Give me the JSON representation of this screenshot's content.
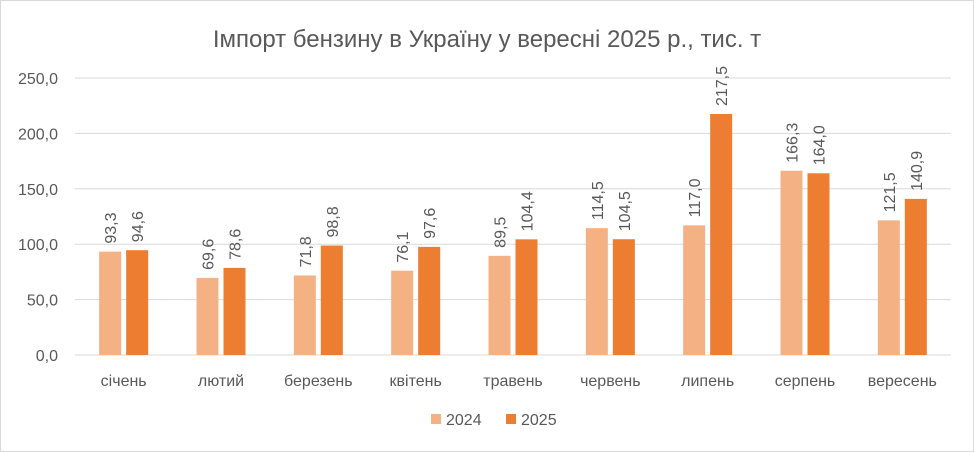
{
  "chart_data": {
    "type": "bar",
    "title": "Імпорт бензину в Україну у вересні 2025 р., тис. т",
    "categories": [
      "січень",
      "лютий",
      "березень",
      "квітень",
      "травень",
      "червень",
      "липень",
      "серпень",
      "вересень"
    ],
    "series": [
      {
        "name": "2024",
        "color": "#F4B183",
        "values": [
          93.3,
          69.6,
          71.8,
          76.1,
          89.5,
          114.5,
          117.0,
          166.3,
          121.5
        ],
        "labels": [
          "93,3",
          "69,6",
          "71,8",
          "76,1",
          "89,5",
          "114,5",
          "117,0",
          "166,3",
          "121,5"
        ]
      },
      {
        "name": "2025",
        "color": "#ED7D31",
        "values": [
          94.6,
          78.6,
          98.8,
          97.6,
          104.4,
          104.5,
          217.5,
          164.0,
          140.9
        ],
        "labels": [
          "94,6",
          "78,6",
          "98,8",
          "97,6",
          "104,4",
          "104,5",
          "217,5",
          "164,0",
          "140,9"
        ]
      }
    ],
    "yticks": [
      "0,0",
      "50,0",
      "100,0",
      "150,0",
      "200,0",
      "250,0"
    ],
    "ylim": [
      0,
      250
    ],
    "xlabel": "",
    "ylabel": "",
    "grid": true,
    "legend": "bottom"
  }
}
